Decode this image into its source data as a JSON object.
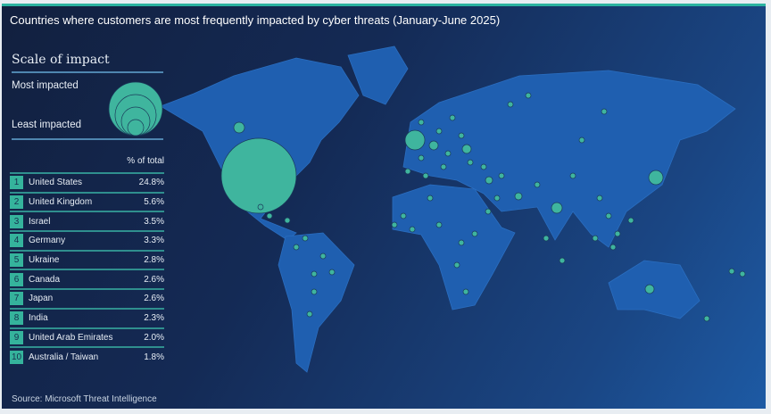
{
  "title": "Countries where customers are most frequently impacted by cyber threats  (January-June 2025)",
  "legend": {
    "title": "Scale of impact",
    "most": "Most impacted",
    "least": "Least impacted"
  },
  "table": {
    "header": "% of total",
    "rows": [
      {
        "rank": "1",
        "country": "United States",
        "pct": "24.8%"
      },
      {
        "rank": "2",
        "country": "United Kingdom",
        "pct": "5.6%"
      },
      {
        "rank": "3",
        "country": "Israel",
        "pct": "3.5%"
      },
      {
        "rank": "4",
        "country": "Germany",
        "pct": "3.3%"
      },
      {
        "rank": "5",
        "country": "Ukraine",
        "pct": "2.8%"
      },
      {
        "rank": "6",
        "country": "Canada",
        "pct": "2.6%"
      },
      {
        "rank": "7",
        "country": "Japan",
        "pct": "2.6%"
      },
      {
        "rank": "8",
        "country": "India",
        "pct": "2.3%"
      },
      {
        "rank": "9",
        "country": "United Arab Emirates",
        "pct": "2.0%"
      },
      {
        "rank": "10",
        "country": "Australia / Taiwan",
        "pct": "1.8%"
      }
    ]
  },
  "source": "Source: Microsoft Threat Intelligence",
  "colors": {
    "bubble": "#3fb59e",
    "land": "#1f5fb0",
    "background": "#142a55",
    "accent": "#2bb3a0"
  }
}
